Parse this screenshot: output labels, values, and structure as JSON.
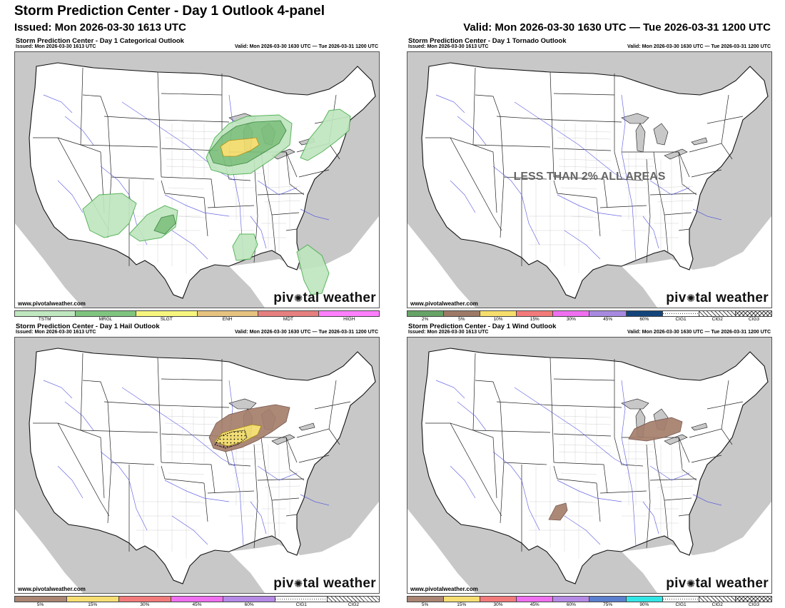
{
  "header": {
    "title": "Storm Prediction Center - Day 1 Outlook 4-panel",
    "issued": "Issued: Mon 2026-03-30 1613 UTC",
    "valid": "Valid: Mon 2026-03-30 1630 UTC — Tue 2026-03-31 1200 UTC"
  },
  "panels": {
    "categorical": {
      "title": "Storm Prediction Center - Day 1 Categorical Outlook",
      "issued": "Issued: Mon 2026-03-30 1613 UTC",
      "valid": "Valid: Mon 2026-03-30 1630 UTC — Tue 2026-03-31 1200 UTC",
      "legend": [
        {
          "label": "TSTM",
          "color": "#c0e8c0"
        },
        {
          "label": "MRGL",
          "color": "#7fc57f"
        },
        {
          "label": "SLGT",
          "color": "#f6f67f"
        },
        {
          "label": "ENH",
          "color": "#e6c27f"
        },
        {
          "label": "MDT",
          "color": "#e67f7f"
        },
        {
          "label": "HIGH",
          "color": "#ff7fff"
        }
      ]
    },
    "tornado": {
      "title": "Storm Prediction Center - Day 1 Tornado Outlook",
      "issued": "Issued: Mon 2026-03-30 1613 UTC",
      "valid": "Valid: Mon 2026-03-30 1630 UTC — Tue 2026-03-31 1200 UTC",
      "nodata": "LESS THAN 2% ALL AREAS",
      "legend": [
        {
          "label": "2%",
          "color": "#66a366"
        },
        {
          "label": "5%",
          "color": "#9d7a67"
        },
        {
          "label": "10%",
          "color": "#f5de6b"
        },
        {
          "label": "15%",
          "color": "#f27a7a"
        },
        {
          "label": "30%",
          "color": "#ef6ff0"
        },
        {
          "label": "45%",
          "color": "#a78ae0"
        },
        {
          "label": "60%",
          "color": "#13457a"
        },
        {
          "label": "CIG1",
          "color": "cig1"
        },
        {
          "label": "CIG2",
          "color": "cig2"
        },
        {
          "label": "CIG3",
          "color": "cig3"
        }
      ]
    },
    "hail": {
      "title": "Storm Prediction Center - Day 1 Hail Outlook",
      "issued": "Issued: Mon 2026-03-30 1613 UTC",
      "valid": "Valid: Mon 2026-03-30 1630 UTC — Tue 2026-03-31 1200 UTC",
      "legend": [
        {
          "label": "5%",
          "color": "#a98473"
        },
        {
          "label": "15%",
          "color": "#f6de73"
        },
        {
          "label": "30%",
          "color": "#f27a7a"
        },
        {
          "label": "45%",
          "color": "#ef6ff0"
        },
        {
          "label": "60%",
          "color": "#b58ae6"
        },
        {
          "label": "CIG1",
          "color": "cig1"
        },
        {
          "label": "CIG2",
          "color": "cig2"
        }
      ]
    },
    "wind": {
      "title": "Storm Prediction Center - Day 1 Wind Outlook",
      "issued": "Issued: Mon 2026-03-30 1613 UTC",
      "valid": "Valid: Mon 2026-03-30 1630 UTC — Tue 2026-03-31 1200 UTC",
      "legend": [
        {
          "label": "5%",
          "color": "#a98473"
        },
        {
          "label": "15%",
          "color": "#f6de73"
        },
        {
          "label": "30%",
          "color": "#f27a7a"
        },
        {
          "label": "45%",
          "color": "#ef6ff0"
        },
        {
          "label": "60%",
          "color": "#b58ae6"
        },
        {
          "label": "75%",
          "color": "#5b7fcf"
        },
        {
          "label": "90%",
          "color": "#33e6e6"
        },
        {
          "label": "CIG1",
          "color": "cig1"
        },
        {
          "label": "CIG2",
          "color": "cig2"
        },
        {
          "label": "CIG3",
          "color": "cig3"
        }
      ]
    }
  },
  "footer": {
    "site": "www.pivotalweather.com",
    "brand_a": "piv",
    "brand_b": "tal weather"
  },
  "colors": {
    "land": "#ffffff",
    "background_land": "#c8c8c8",
    "rivers": "#4a4adf",
    "tstm": "#bfe6bf",
    "mrgl": "#7bbf7b",
    "slgt": "#f2dc6b",
    "prob5": "#a57e6c"
  }
}
